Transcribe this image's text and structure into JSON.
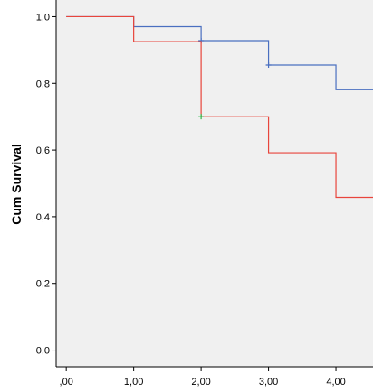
{
  "chart_data": {
    "type": "line",
    "step": true,
    "ylabel": "Cum Survival",
    "xlabel": "",
    "xlim": [
      -0.15,
      4.55
    ],
    "ylim": [
      -0.05,
      1.05
    ],
    "x_ticks": [
      0,
      1,
      2,
      3,
      4
    ],
    "x_tick_labels": [
      ",00",
      "1,00",
      "2,00",
      "3,00",
      "4,00"
    ],
    "y_ticks": [
      0,
      0.2,
      0.4,
      0.6,
      0.8,
      1.0
    ],
    "y_tick_labels": [
      "0,0",
      "0,2",
      "0,4",
      "0,6",
      "0,8",
      "1,0"
    ],
    "grid": false,
    "plot_background": "#f0f0f0",
    "series": [
      {
        "color": "#4a6fc0",
        "x": [
          0,
          1,
          2,
          3,
          4,
          4.55
        ],
        "y": [
          1.0,
          0.97,
          0.928,
          0.855,
          0.781,
          0.781
        ],
        "censored": [
          [
            2,
            0.928
          ],
          [
            3,
            0.855
          ]
        ],
        "censor_color": "#4a6fc0"
      },
      {
        "color": "#e8453c",
        "x": [
          0,
          1,
          2,
          3,
          4,
          4.55
        ],
        "y": [
          1.0,
          0.925,
          0.7,
          0.592,
          0.458,
          0.458
        ],
        "censored": [
          [
            2,
            0.7
          ]
        ],
        "censor_color": "#2db84a"
      }
    ]
  }
}
